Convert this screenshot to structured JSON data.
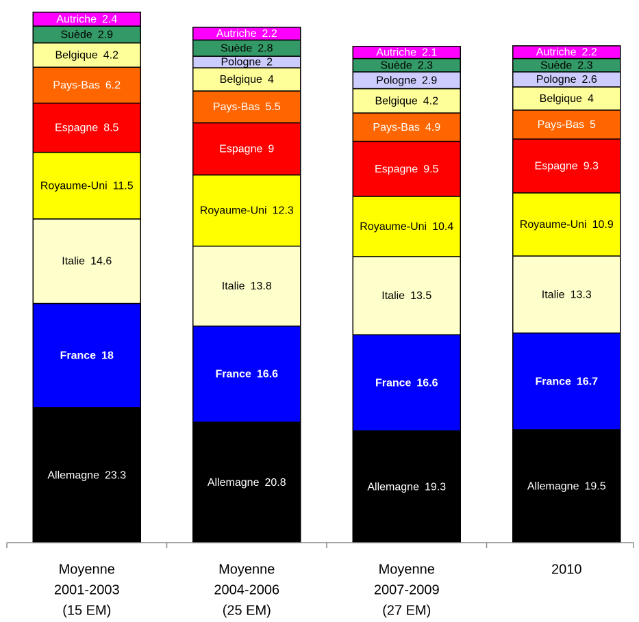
{
  "chart_data": {
    "type": "stacked_bar",
    "categories": [
      [
        "Moyenne",
        "2001-2003",
        "(15 EM)"
      ],
      [
        "Moyenne",
        "2004-2006",
        "(25 EM)"
      ],
      [
        "Moyenne",
        "2007-2009",
        "(27 EM)"
      ],
      [
        "2010"
      ]
    ],
    "series": [
      {
        "name": "Allemagne",
        "color": "#000000",
        "values": [
          23.3,
          20.8,
          19.3,
          19.5
        ]
      },
      {
        "name": "France",
        "color": "#0000ff",
        "values": [
          18,
          16.6,
          16.6,
          16.7
        ]
      },
      {
        "name": "Italie",
        "color": "#ffffcc",
        "values": [
          14.6,
          13.8,
          13.5,
          13.3
        ]
      },
      {
        "name": "Royaume-Uni",
        "color": "#ffff00",
        "values": [
          11.5,
          12.3,
          10.4,
          10.9
        ]
      },
      {
        "name": "Espagne",
        "color": "#ff0000",
        "values": [
          8.5,
          9,
          9.5,
          9.3
        ]
      },
      {
        "name": "Pays-Bas",
        "color": "#ff6600",
        "values": [
          6.2,
          5.5,
          4.9,
          5
        ]
      },
      {
        "name": "Belgique",
        "color": "#ffff99",
        "values": [
          4.2,
          4,
          4.2,
          4
        ]
      },
      {
        "name": "Pologne",
        "color": "#ccccff",
        "values": [
          null,
          2,
          2.9,
          2.6
        ]
      },
      {
        "name": "Suède",
        "color": "#339966",
        "values": [
          2.9,
          2.8,
          2.3,
          2.3
        ]
      },
      {
        "name": "Autriche",
        "color": "#ff00ff",
        "values": [
          2.4,
          2.2,
          2.1,
          2.2
        ]
      }
    ],
    "ylim": [
      0,
      93
    ]
  }
}
